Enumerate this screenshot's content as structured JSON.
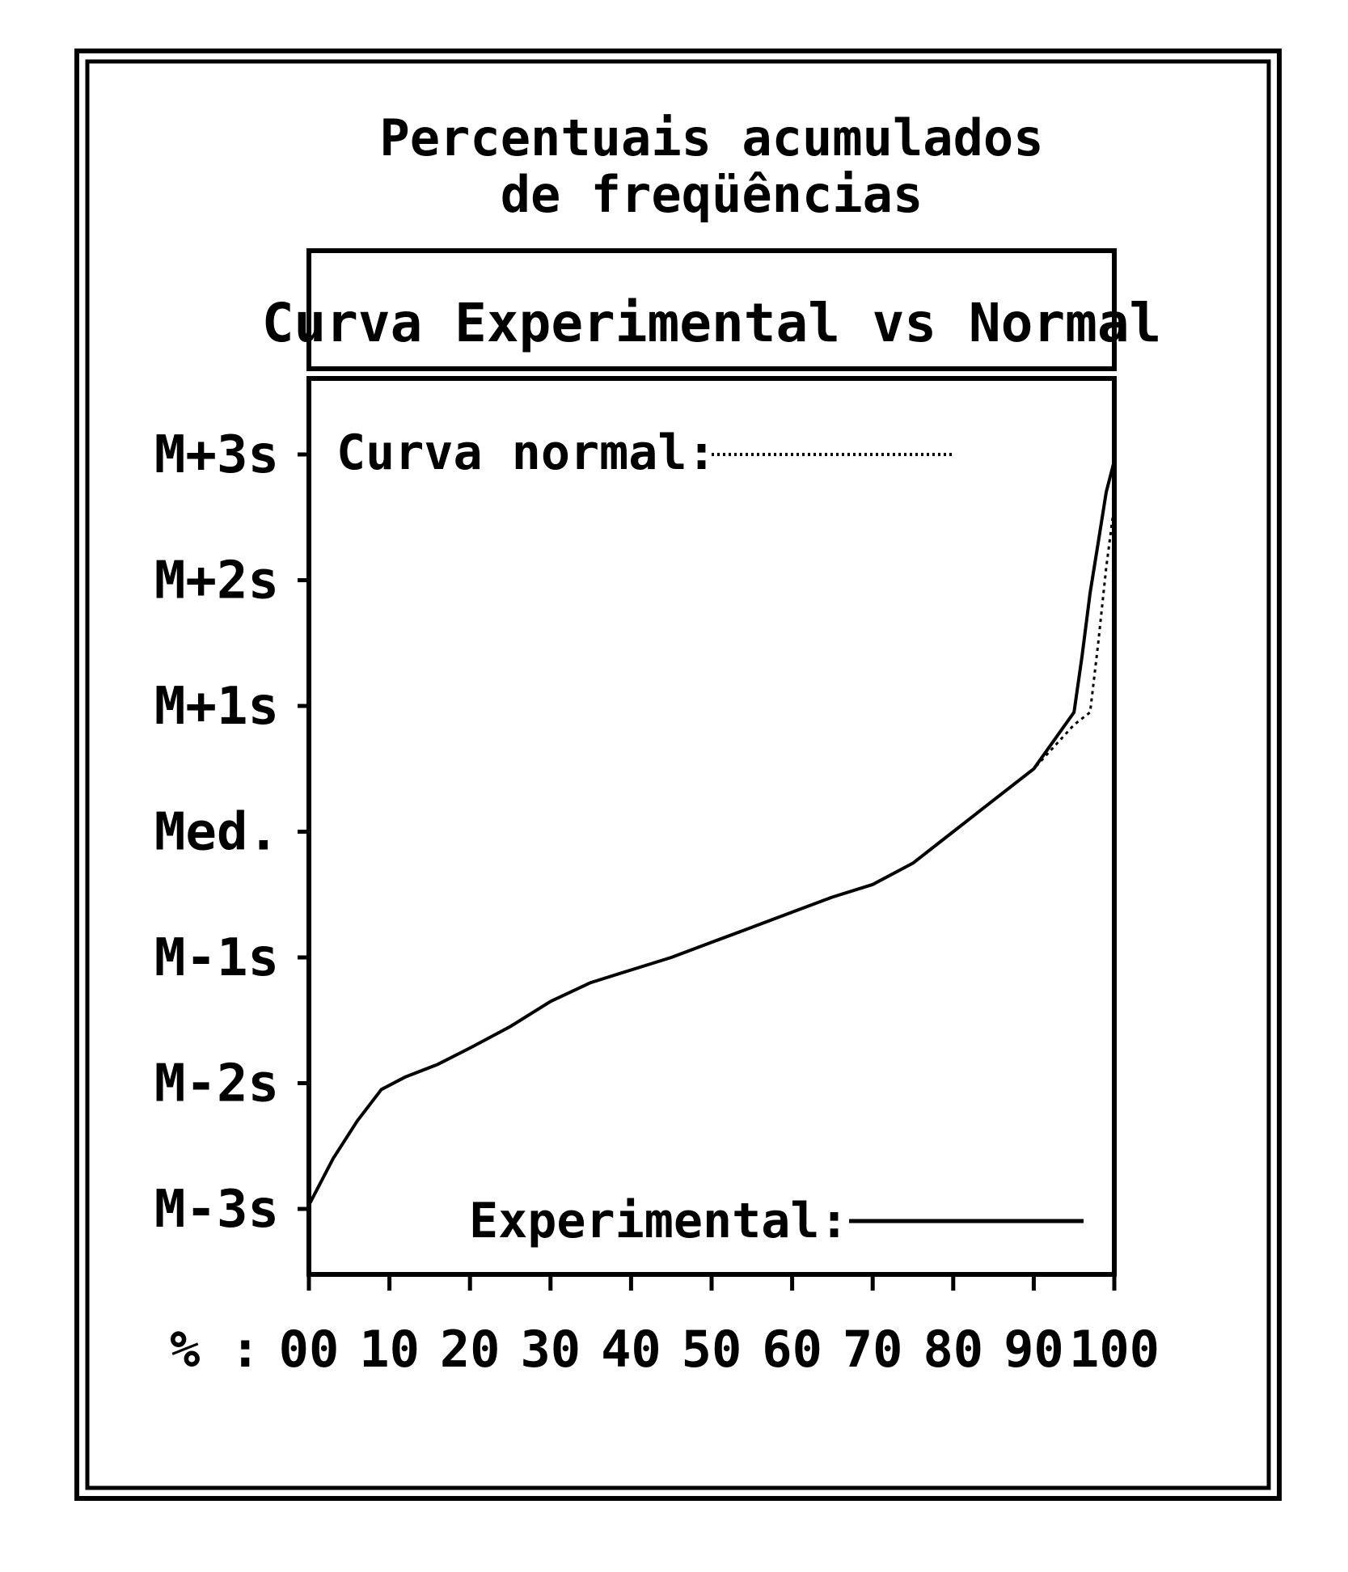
{
  "chart_data": {
    "type": "line",
    "title_line1": "Percentuais acumulados",
    "title_line2": "de freqüências",
    "subtitle": "Curva Experimental vs Normal",
    "xlim": [
      0,
      100
    ],
    "ylim": [
      -3,
      3
    ],
    "x_prefix": "% :",
    "x_ticks": [
      0,
      10,
      20,
      30,
      40,
      50,
      60,
      70,
      80,
      90,
      100
    ],
    "x_tick_labels": [
      "00",
      "10",
      "20",
      "30",
      "40",
      "50",
      "60",
      "70",
      "80",
      "90",
      "100"
    ],
    "y_ticks": [
      3,
      2,
      1,
      0,
      -1,
      -2,
      -3
    ],
    "y_tick_labels": [
      "M+3s",
      "M+2s",
      "M+1s",
      "Med.",
      "M-1s",
      "M-2s",
      "M-3s"
    ],
    "legend": {
      "normal_label": "Curva normal:",
      "experimental_label": "Experimental:"
    },
    "series": [
      {
        "name": "Experimental",
        "style": "solid",
        "x": [
          0,
          3,
          6,
          9,
          12,
          16,
          20,
          25,
          30,
          35,
          40,
          45,
          50,
          55,
          60,
          65,
          70,
          75,
          80,
          85,
          90,
          95,
          96,
          97,
          98,
          99,
          100
        ],
        "y": [
          -2.97,
          -2.6,
          -2.3,
          -2.05,
          -1.95,
          -1.85,
          -1.72,
          -1.55,
          -1.35,
          -1.2,
          -1.1,
          -1.0,
          -0.88,
          -0.76,
          -0.64,
          -0.52,
          -0.42,
          -0.25,
          0.0,
          0.25,
          0.5,
          0.95,
          1.4,
          1.9,
          2.3,
          2.7,
          2.95
        ]
      },
      {
        "name": "Curva normal",
        "style": "dotted",
        "x": [
          0,
          3,
          6,
          9,
          12,
          16,
          20,
          25,
          30,
          35,
          40,
          45,
          50,
          55,
          60,
          65,
          70,
          75,
          80,
          85,
          90,
          95,
          97,
          98,
          99,
          100
        ],
        "y": [
          -2.97,
          -2.6,
          -2.3,
          -2.05,
          -1.95,
          -1.85,
          -1.72,
          -1.55,
          -1.35,
          -1.2,
          -1.1,
          -1.0,
          -0.88,
          -0.76,
          -0.64,
          -0.52,
          -0.42,
          -0.25,
          0.0,
          0.25,
          0.5,
          0.85,
          0.95,
          1.5,
          2.1,
          2.6
        ]
      }
    ],
    "colors": {
      "ink": "#000000",
      "background": "#ffffff"
    }
  }
}
